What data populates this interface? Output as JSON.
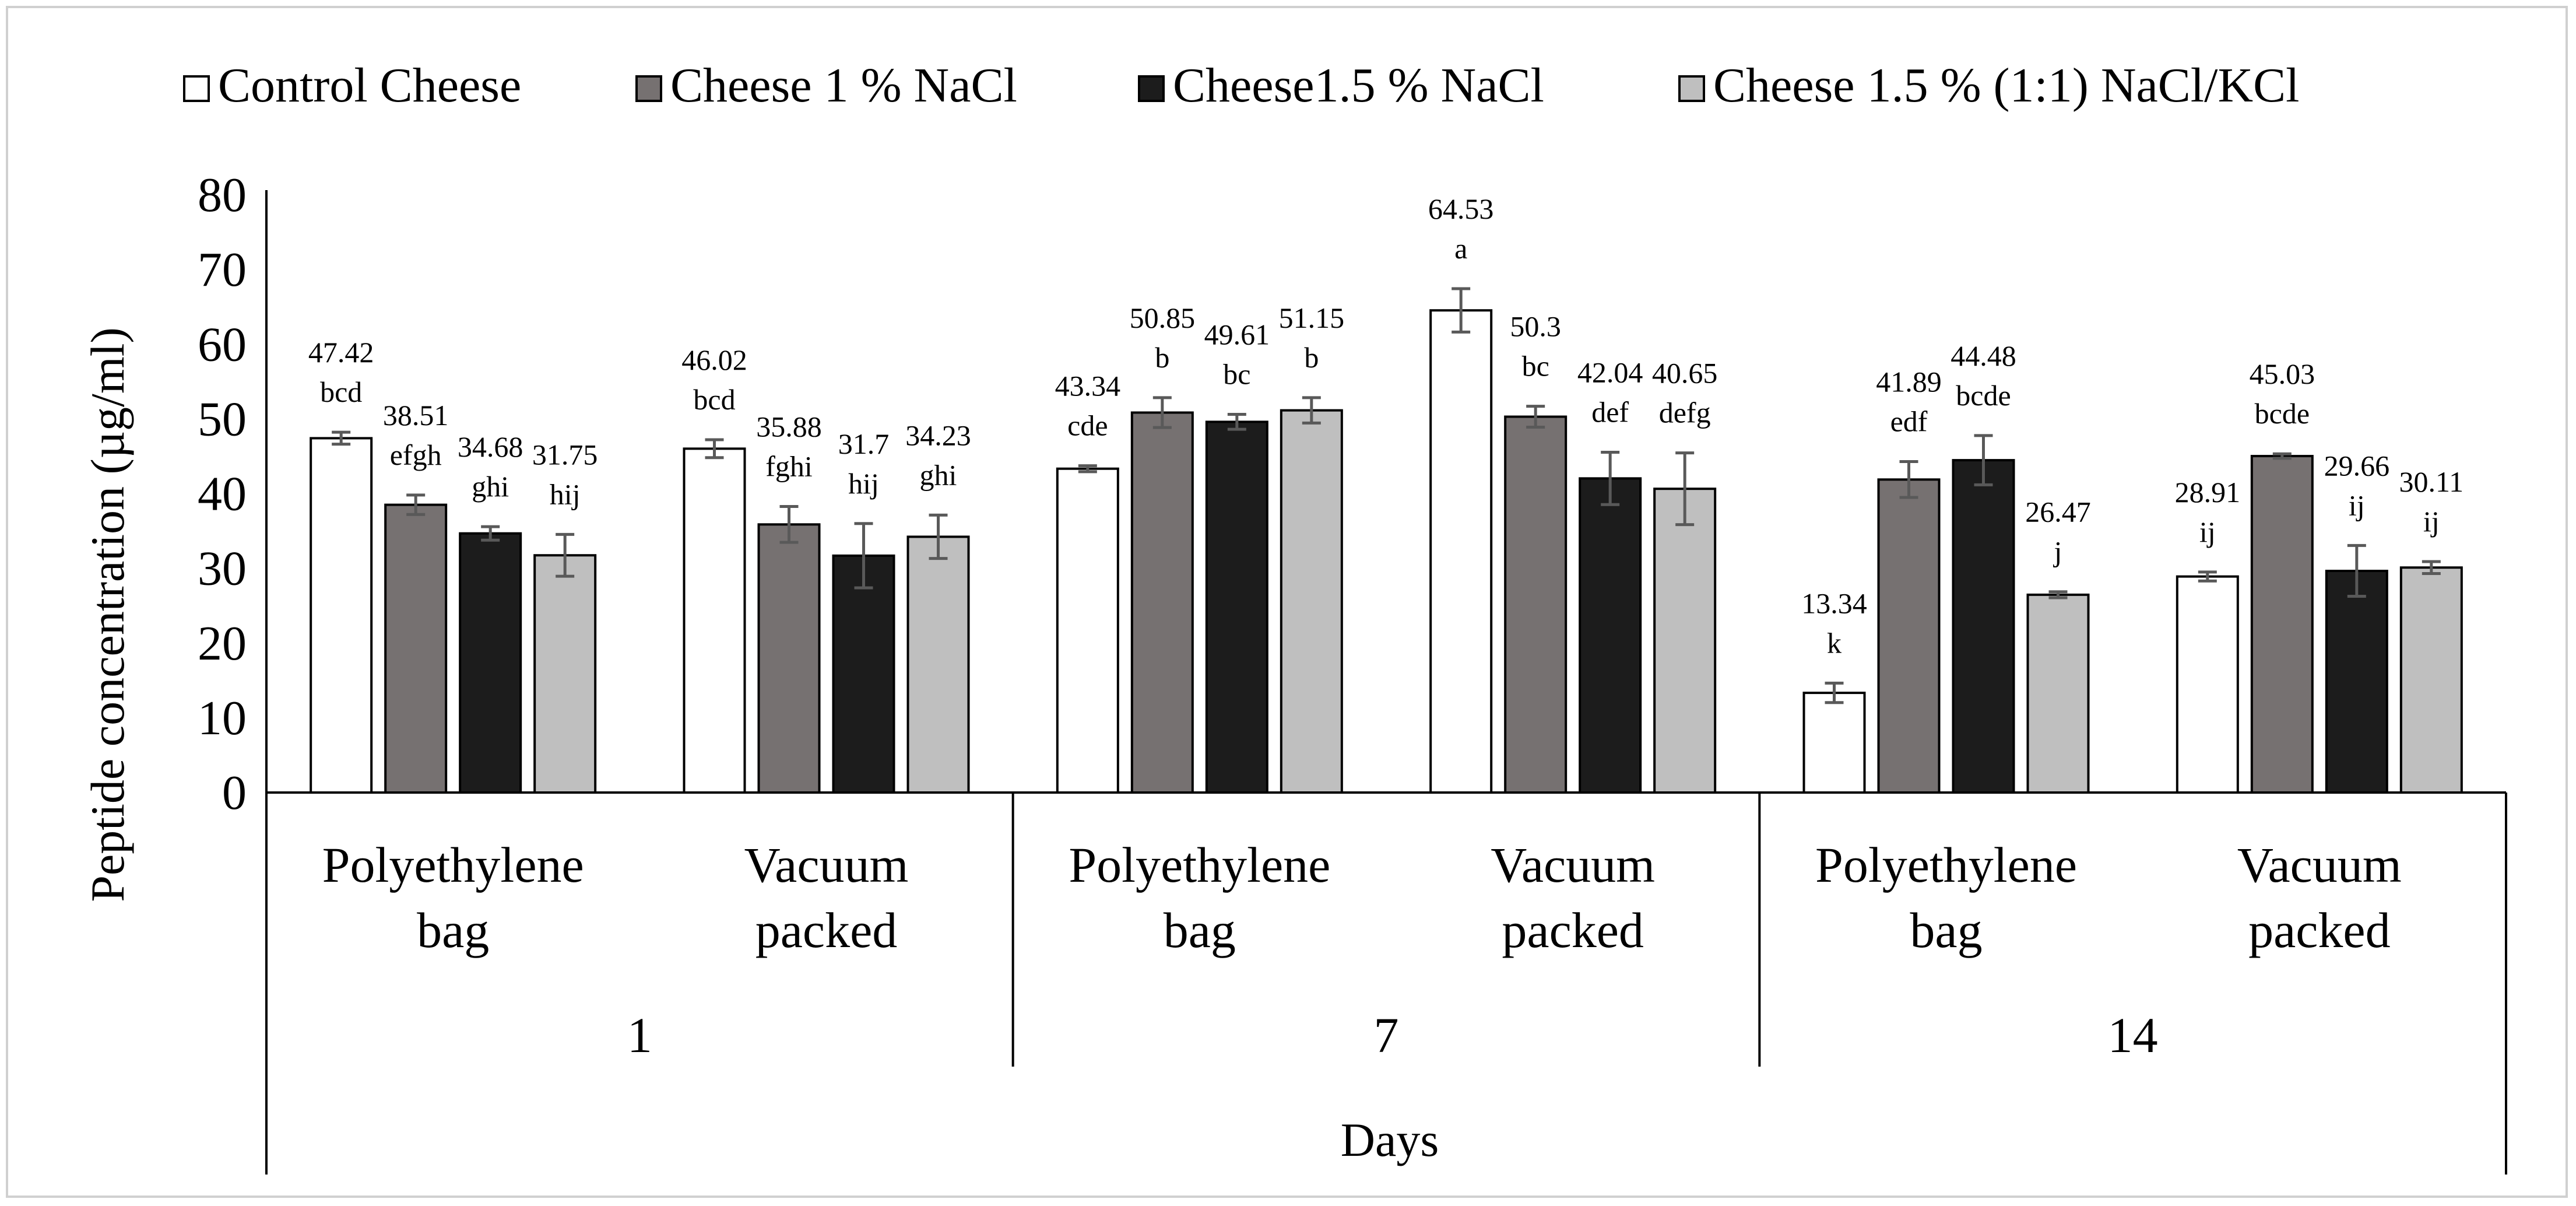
{
  "chart_data": {
    "type": "bar",
    "ylabel": "Peptide concentration (µg/ml)",
    "xlabel": "Days",
    "ylim": [
      0,
      80
    ],
    "yticks": [
      0,
      10,
      20,
      30,
      40,
      50,
      60,
      70,
      80
    ],
    "grid": false,
    "legend": "top",
    "groups": [
      {
        "day": "1",
        "packages": [
          "Polyethylene\nbag",
          "Vacuum\npacked"
        ]
      },
      {
        "day": "7",
        "packages": [
          "Polyethylene\nbag",
          "Vacuum\npacked"
        ]
      },
      {
        "day": "14",
        "packages": [
          "Polyethylene\nbag",
          "Vacuum\npacked"
        ]
      }
    ],
    "categories": [
      "1 | Polyethylene bag",
      "1 | Vacuum packed",
      "7 | Polyethylene bag",
      "7 | Vacuum packed",
      "14 | Polyethylene bag",
      "14 | Vacuum packed"
    ],
    "series": [
      {
        "name": "Control Cheese",
        "color": "#ffffff",
        "values": [
          47.42,
          46.02,
          43.34,
          64.53,
          13.34,
          28.91
        ],
        "errors": [
          0.8,
          1.2,
          0.4,
          2.9,
          1.3,
          0.6
        ],
        "value_labels": [
          "47.42",
          "46.02",
          "43.34",
          "64.53",
          "13.34",
          "28.91"
        ],
        "letters": [
          "bcd",
          "bcd",
          "cde",
          "a",
          "k",
          "ij"
        ]
      },
      {
        "name": "Cheese 1 % NaCl",
        "color": "#767171",
        "values": [
          38.51,
          35.88,
          50.85,
          50.3,
          41.89,
          45.03
        ],
        "errors": [
          1.3,
          2.4,
          2.0,
          1.4,
          2.4,
          0.3
        ],
        "value_labels": [
          "38.51",
          "35.88",
          "50.85",
          "50.3",
          "41.89",
          "45.03"
        ],
        "letters": [
          "efgh",
          "fghi",
          "b",
          "bc",
          "edf",
          "bcde"
        ]
      },
      {
        "name": "Cheese1.5 % NaCl",
        "color": "#1c1c1c",
        "values": [
          34.68,
          31.7,
          49.61,
          42.04,
          44.48,
          29.66
        ],
        "errors": [
          0.9,
          4.3,
          1.0,
          3.5,
          3.3,
          3.4
        ],
        "value_labels": [
          "34.68",
          "31.7",
          "49.61",
          "42.04",
          "44.48",
          "29.66"
        ],
        "letters": [
          "ghi",
          "hij",
          "bc",
          "def",
          "bcde",
          "ij"
        ]
      },
      {
        "name": "Cheese 1.5 % (1:1) NaCl/KCl",
        "color": "#bfbfbf",
        "values": [
          31.75,
          34.23,
          51.15,
          40.65,
          26.47,
          30.11
        ],
        "errors": [
          2.8,
          2.9,
          1.7,
          4.8,
          0.4,
          0.8
        ],
        "value_labels": [
          "31.75",
          "34.23",
          "51.15",
          "40.65",
          "26.47",
          "30.11"
        ],
        "letters": [
          "hij",
          "ghi",
          "b",
          "defg",
          "j",
          "ij"
        ]
      }
    ]
  }
}
